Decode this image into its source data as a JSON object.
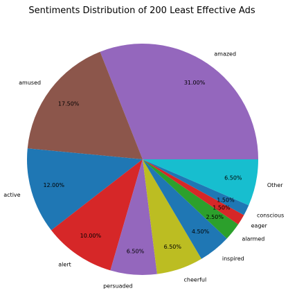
{
  "chart_data": {
    "type": "pie",
    "title": "Sentiments Distribution of 200 Least Effective Ads",
    "start_angle_deg": 0,
    "direction": "counterclockwise",
    "slices": [
      {
        "label": "amazed",
        "value": 31.0,
        "pct_text": "31.00%",
        "color": "#9467bd"
      },
      {
        "label": "amused",
        "value": 17.5,
        "pct_text": "17.50%",
        "color": "#8c564b"
      },
      {
        "label": "active",
        "value": 12.0,
        "pct_text": "12.00%",
        "color": "#1f77b4"
      },
      {
        "label": "alert",
        "value": 10.0,
        "pct_text": "10.00%",
        "color": "#d62728"
      },
      {
        "label": "persuaded",
        "value": 6.5,
        "pct_text": "6.50%",
        "color": "#9467bd"
      },
      {
        "label": "cheerful",
        "value": 6.5,
        "pct_text": "6.50%",
        "color": "#bcbd22"
      },
      {
        "label": "inspired",
        "value": 4.5,
        "pct_text": "4.50%",
        "color": "#1f77b4"
      },
      {
        "label": "alarmed",
        "value": 2.5,
        "pct_text": "2.50%",
        "color": "#2ca02c"
      },
      {
        "label": "eager",
        "value": 1.5,
        "pct_text": "1.50%",
        "color": "#d62728"
      },
      {
        "label": "conscious",
        "value": 1.5,
        "pct_text": "1.50%",
        "color": "#1f77b4"
      },
      {
        "label": "Other",
        "value": 6.5,
        "pct_text": "6.50%",
        "color": "#17becf"
      }
    ]
  }
}
